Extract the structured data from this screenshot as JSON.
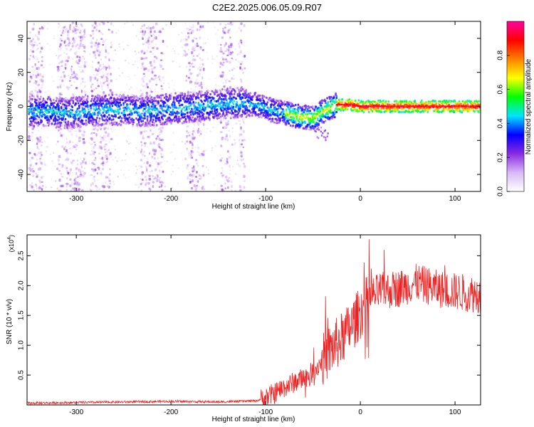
{
  "figure": {
    "title": "C2E2.2025.006.05.09.R07"
  },
  "chart_data": [
    {
      "type": "heatmap",
      "xlabel": "Height of straight line (km)",
      "ylabel": "Frequency (Hz)",
      "xlim": [
        -352,
        127
      ],
      "ylim": [
        -50,
        50
      ],
      "x_ticks": [
        -300,
        -200,
        -100,
        0,
        100
      ],
      "y_ticks": [
        -40,
        -20,
        0,
        20,
        40
      ],
      "colorbar": {
        "label": "Normalized spectral amplitude",
        "ticks": [
          "0.0",
          "0.2",
          "0.4",
          "0.6",
          "0.8"
        ],
        "tick_values": [
          0.0,
          0.2,
          0.4,
          0.6,
          0.8
        ],
        "range": [
          0,
          1
        ],
        "colormap": [
          "#ffffff",
          "#d8b8f5",
          "#8a2be2",
          "#0000ff",
          "#00e5ff",
          "#00ff00",
          "#ffff00",
          "#ff8000",
          "#ff0000",
          "#ff00a0"
        ]
      },
      "main_track": [
        {
          "x": -345,
          "y": -3
        },
        {
          "x": -330,
          "y": -3
        },
        {
          "x": -310,
          "y": -4
        },
        {
          "x": -290,
          "y": -3
        },
        {
          "x": -270,
          "y": -2
        },
        {
          "x": -250,
          "y": -2
        },
        {
          "x": -230,
          "y": -3
        },
        {
          "x": -210,
          "y": -2
        },
        {
          "x": -190,
          "y": -1
        },
        {
          "x": -170,
          "y": 0
        },
        {
          "x": -150,
          "y": 1
        },
        {
          "x": -130,
          "y": 2
        },
        {
          "x": -110,
          "y": 1
        },
        {
          "x": -95,
          "y": -2
        },
        {
          "x": -80,
          "y": -4
        },
        {
          "x": -65,
          "y": -6
        },
        {
          "x": -50,
          "y": -7
        },
        {
          "x": -40,
          "y": -3
        },
        {
          "x": -25,
          "y": 1
        },
        {
          "x": -10,
          "y": 1
        },
        {
          "x": 0,
          "y": 0
        },
        {
          "x": 50,
          "y": 0
        },
        {
          "x": 100,
          "y": 0
        },
        {
          "x": 127,
          "y": 0
        }
      ]
    },
    {
      "type": "line",
      "xlabel": "Height of straight line (km)",
      "ylabel": "SNR (10 * v/v)",
      "yscale_label": "(x10",
      "yscale_exp": "4",
      "xlim": [
        -352,
        127
      ],
      "ylim": [
        0,
        2.85
      ],
      "x_ticks": [
        -300,
        -200,
        -100,
        0,
        100
      ],
      "y_ticks": [
        0.5,
        1.0,
        1.5,
        2.0,
        2.5
      ],
      "y_tick_labels": [
        "0.5",
        "1.0",
        "1.5",
        "2.0",
        "2.5"
      ],
      "line_color": "#ee2222",
      "trend": [
        {
          "x": -352,
          "y": 0.03
        },
        {
          "x": -300,
          "y": 0.04
        },
        {
          "x": -250,
          "y": 0.05
        },
        {
          "x": -200,
          "y": 0.06
        },
        {
          "x": -150,
          "y": 0.05
        },
        {
          "x": -110,
          "y": 0.07
        },
        {
          "x": -100,
          "y": 0.12
        },
        {
          "x": -90,
          "y": 0.2
        },
        {
          "x": -80,
          "y": 0.3
        },
        {
          "x": -70,
          "y": 0.38
        },
        {
          "x": -60,
          "y": 0.45
        },
        {
          "x": -50,
          "y": 0.55
        },
        {
          "x": -40,
          "y": 0.75
        },
        {
          "x": -30,
          "y": 0.95
        },
        {
          "x": -20,
          "y": 1.1
        },
        {
          "x": -10,
          "y": 1.3
        },
        {
          "x": 0,
          "y": 1.55
        },
        {
          "x": 10,
          "y": 1.8
        },
        {
          "x": 20,
          "y": 1.9
        },
        {
          "x": 40,
          "y": 1.95
        },
        {
          "x": 60,
          "y": 2.05
        },
        {
          "x": 80,
          "y": 1.95
        },
        {
          "x": 100,
          "y": 1.9
        },
        {
          "x": 127,
          "y": 1.85
        }
      ]
    }
  ]
}
